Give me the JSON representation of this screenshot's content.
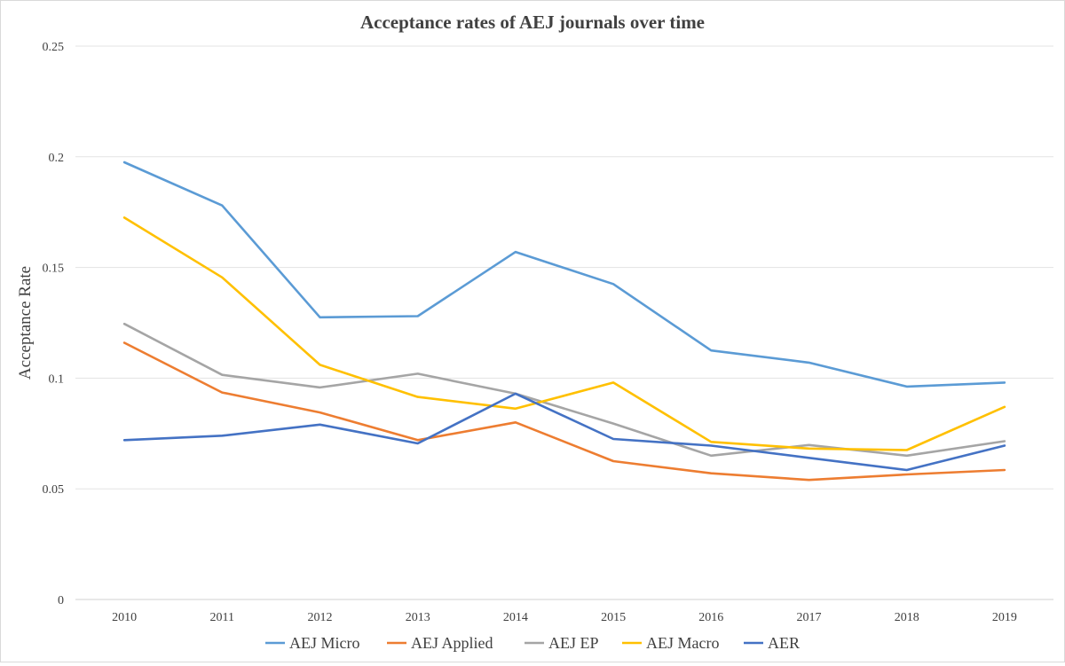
{
  "chart_data": {
    "type": "line",
    "title": "Acceptance rates of AEJ journals over time",
    "xlabel": "",
    "ylabel": "Acceptance Rate",
    "categories": [
      "2010",
      "2011",
      "2012",
      "2013",
      "2014",
      "2015",
      "2016",
      "2017",
      "2018",
      "2019"
    ],
    "ylim": [
      0,
      0.25
    ],
    "yticks": [
      "0",
      "0.05",
      "0.1",
      "0.15",
      "0.2",
      "0.25"
    ],
    "grid": true,
    "legend_position": "bottom",
    "series": [
      {
        "name": "AEJ Micro",
        "color": "#5b9bd5",
        "values": [
          0.1975,
          0.178,
          0.1275,
          0.128,
          0.157,
          0.1425,
          0.1125,
          0.107,
          0.0962,
          0.098
        ]
      },
      {
        "name": "AEJ Applied",
        "color": "#ed7d31",
        "values": [
          0.116,
          0.0935,
          0.0845,
          0.072,
          0.08,
          0.0625,
          0.057,
          0.054,
          0.0565,
          0.0585
        ]
      },
      {
        "name": "AEJ EP",
        "color": "#a5a5a5",
        "values": [
          0.1245,
          0.1015,
          0.0958,
          0.102,
          0.093,
          0.0795,
          0.065,
          0.0698,
          0.065,
          0.0715
        ]
      },
      {
        "name": "AEJ Macro",
        "color": "#ffc000",
        "values": [
          0.1725,
          0.1455,
          0.106,
          0.0915,
          0.0862,
          0.098,
          0.0712,
          0.0682,
          0.0675,
          0.087
        ]
      },
      {
        "name": "AER",
        "color": "#4472c4",
        "values": [
          0.072,
          0.074,
          0.079,
          0.0705,
          0.093,
          0.0725,
          0.0695,
          0.064,
          0.0585,
          0.0695
        ]
      }
    ]
  }
}
